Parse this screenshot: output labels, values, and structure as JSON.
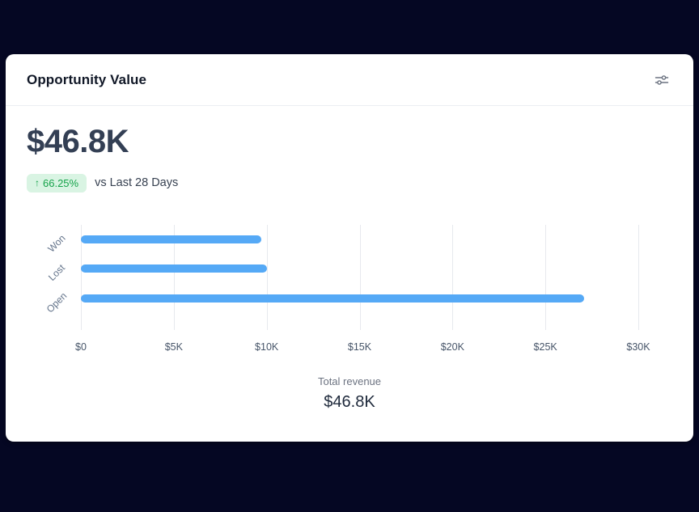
{
  "theme": {
    "page_background": "#050723",
    "card_background": "#ffffff",
    "bar_color": "#55a9f6",
    "badge_background": "#d9f4e3",
    "badge_text_color": "#16a34a"
  },
  "card": {
    "title": "Opportunity Value",
    "metric_value": "$46.8K",
    "badge": {
      "arrow": "↑",
      "value": "66.25%"
    },
    "comparison_label": "vs Last 28 Days",
    "footer": {
      "label": "Total revenue",
      "value": "$46.8K"
    }
  },
  "icons": {
    "header_icon": "sliders-icon"
  },
  "chart_data": {
    "type": "bar",
    "orientation": "horizontal",
    "title": "Opportunity Value",
    "categories": [
      "Won",
      "Lost",
      "Open"
    ],
    "values": [
      9.7,
      10.0,
      27.1
    ],
    "value_unit": "K USD",
    "total": 46.8,
    "x_ticks": [
      "$0",
      "$5K",
      "$10K",
      "$15K",
      "$20K",
      "$25K",
      "$30K"
    ],
    "x_tick_values": [
      0,
      5,
      10,
      15,
      20,
      25,
      30
    ],
    "xlim": [
      0,
      30
    ],
    "grid": true,
    "legend": false,
    "bar_color": "#55a9f6"
  }
}
